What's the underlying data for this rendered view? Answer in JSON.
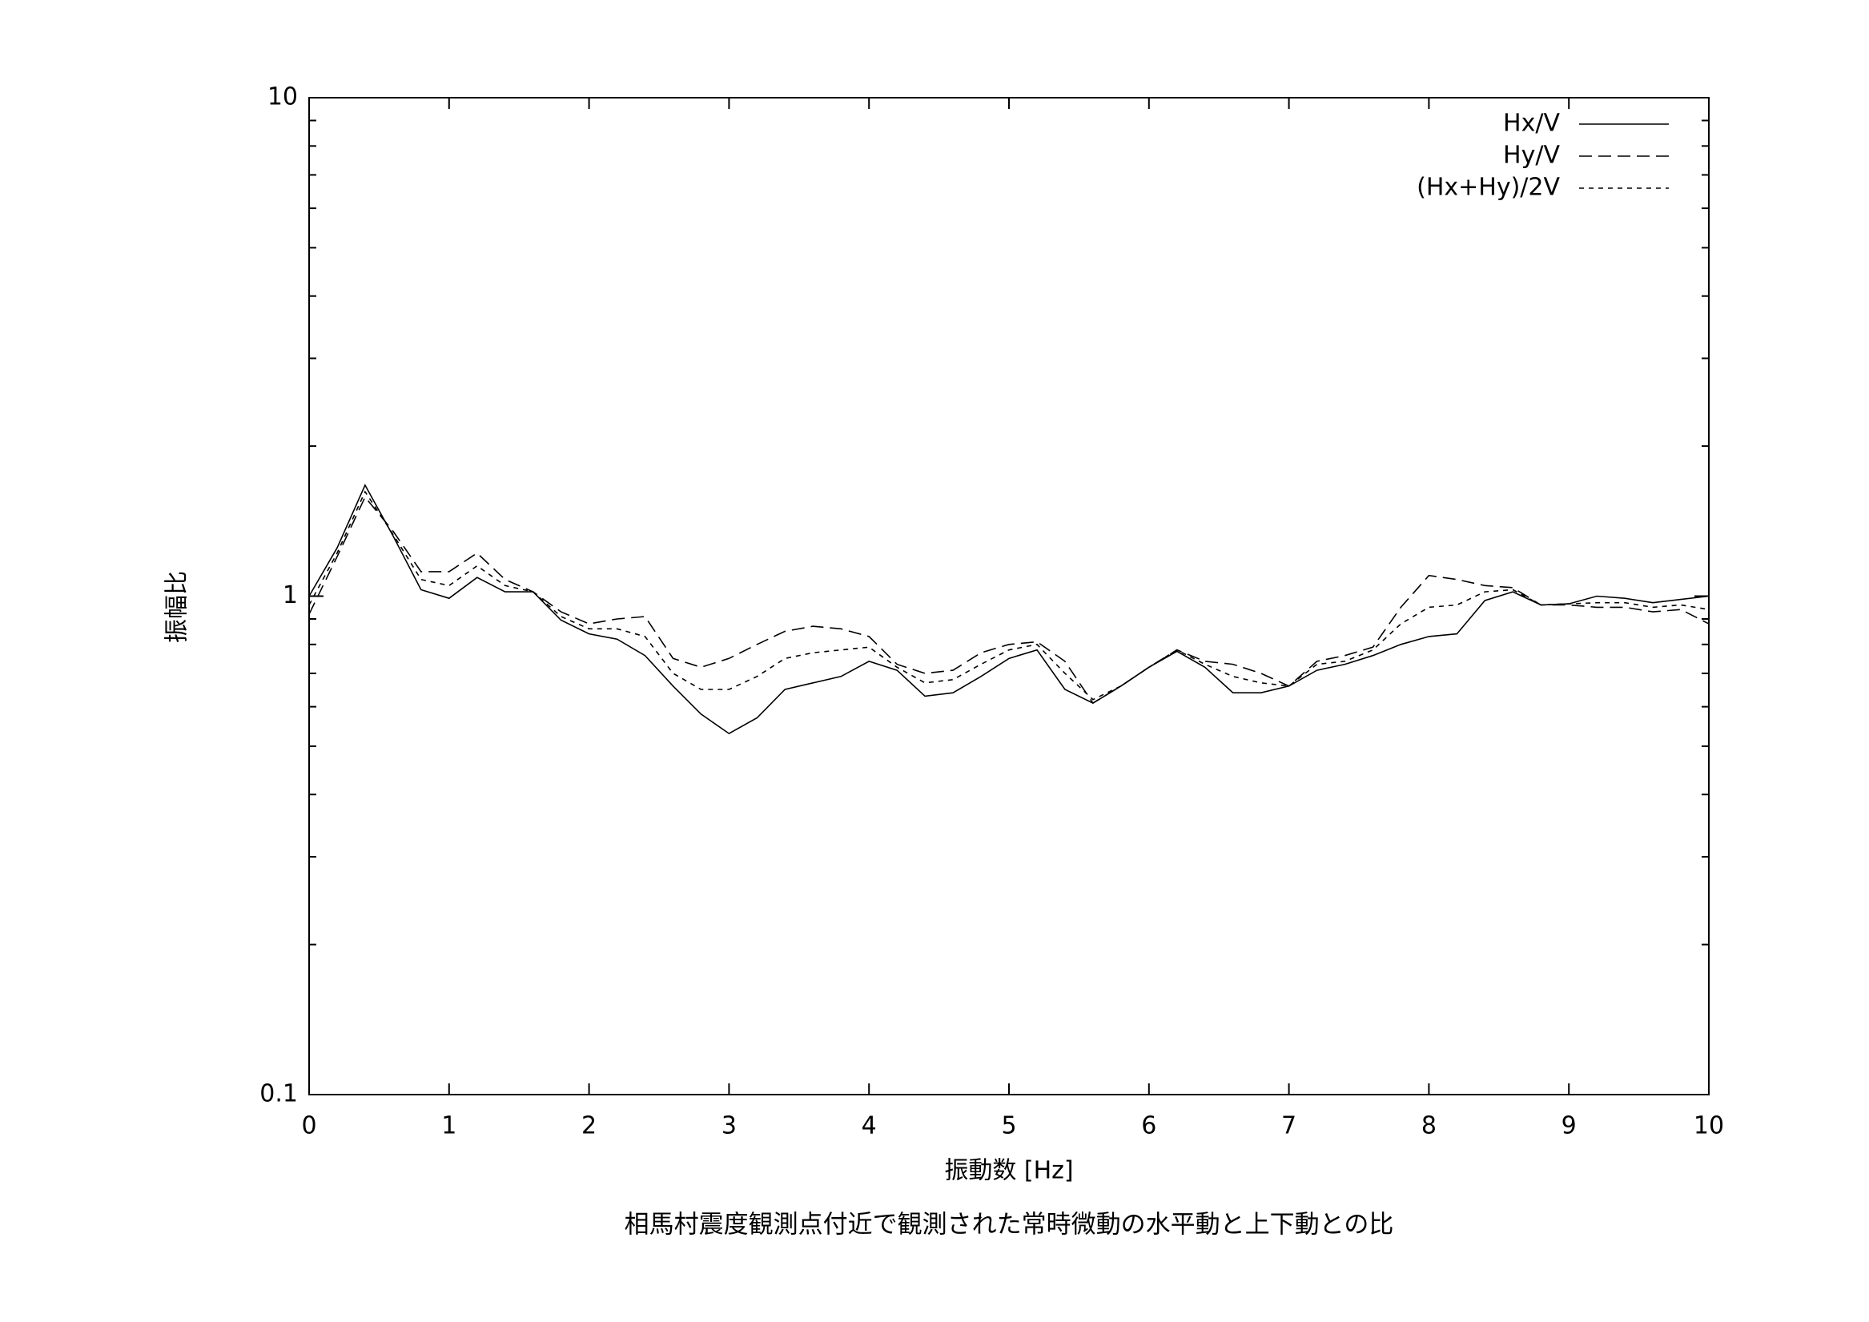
{
  "chart_data": {
    "type": "line",
    "title": "相馬村震度観測点付近で観測された常時微動の水平動と上下動との比",
    "xlabel": "振動数 [Hz]",
    "ylabel": "振幅比",
    "x": [
      0,
      0.2,
      0.4,
      0.6,
      0.8,
      1.0,
      1.2,
      1.4,
      1.6,
      1.8,
      2.0,
      2.2,
      2.4,
      2.6,
      2.8,
      3.0,
      3.2,
      3.4,
      3.6,
      3.8,
      4.0,
      4.2,
      4.4,
      4.6,
      4.8,
      5.0,
      5.2,
      5.4,
      5.6,
      5.8,
      6.0,
      6.2,
      6.4,
      6.6,
      6.8,
      7.0,
      7.2,
      7.4,
      7.6,
      7.8,
      8.0,
      8.2,
      8.4,
      8.6,
      8.8,
      9.0,
      9.2,
      9.4,
      9.6,
      9.8,
      10
    ],
    "series": [
      {
        "name": "Hx/V",
        "color": "#000000",
        "dash": "none",
        "values": [
          1.0,
          1.25,
          1.67,
          1.32,
          1.03,
          0.99,
          1.09,
          1.02,
          1.02,
          0.895,
          0.84,
          0.82,
          0.76,
          0.66,
          0.58,
          0.53,
          0.57,
          0.65,
          0.67,
          0.69,
          0.74,
          0.71,
          0.63,
          0.64,
          0.69,
          0.75,
          0.78,
          0.65,
          0.61,
          0.66,
          0.72,
          0.775,
          0.72,
          0.64,
          0.64,
          0.66,
          0.71,
          0.73,
          0.76,
          0.8,
          0.83,
          0.84,
          0.98,
          1.02,
          0.96,
          0.965,
          1.0,
          0.99,
          0.97,
          0.985,
          1.0
        ]
      },
      {
        "name": "Hy/V",
        "color": "#000000",
        "dash": "16,8",
        "values": [
          0.92,
          1.2,
          1.58,
          1.35,
          1.12,
          1.12,
          1.22,
          1.08,
          1.02,
          0.93,
          0.88,
          0.9,
          0.91,
          0.75,
          0.72,
          0.75,
          0.8,
          0.85,
          0.87,
          0.86,
          0.83,
          0.73,
          0.7,
          0.71,
          0.77,
          0.8,
          0.81,
          0.74,
          0.61,
          0.66,
          0.72,
          0.78,
          0.74,
          0.73,
          0.7,
          0.66,
          0.74,
          0.76,
          0.79,
          0.95,
          1.1,
          1.08,
          1.05,
          1.04,
          0.96,
          0.96,
          0.95,
          0.95,
          0.93,
          0.94,
          0.88
        ]
      },
      {
        "name": "(Hx+Hy)/2V",
        "color": "#000000",
        "dash": "6,6",
        "values": [
          0.96,
          1.22,
          1.62,
          1.33,
          1.08,
          1.05,
          1.15,
          1.05,
          1.02,
          0.91,
          0.86,
          0.86,
          0.83,
          0.7,
          0.65,
          0.65,
          0.69,
          0.75,
          0.77,
          0.78,
          0.79,
          0.72,
          0.67,
          0.68,
          0.73,
          0.78,
          0.8,
          0.7,
          0.62,
          0.66,
          0.72,
          0.78,
          0.73,
          0.69,
          0.67,
          0.66,
          0.73,
          0.74,
          0.78,
          0.88,
          0.95,
          0.96,
          1.02,
          1.03,
          0.96,
          0.965,
          0.97,
          0.97,
          0.95,
          0.96,
          0.94
        ]
      }
    ],
    "xlim": [
      0,
      10
    ],
    "xticks": [
      0,
      1,
      2,
      3,
      4,
      5,
      6,
      7,
      8,
      9,
      10
    ],
    "ylim": [
      0.1,
      10
    ],
    "yticks": [
      0.1,
      1,
      10
    ],
    "yminorticks": [
      0.2,
      0.3,
      0.4,
      0.5,
      0.6,
      0.7,
      0.8,
      0.9,
      2,
      3,
      4,
      5,
      6,
      7,
      8,
      9
    ],
    "ylog": true,
    "legend": "top-right"
  }
}
